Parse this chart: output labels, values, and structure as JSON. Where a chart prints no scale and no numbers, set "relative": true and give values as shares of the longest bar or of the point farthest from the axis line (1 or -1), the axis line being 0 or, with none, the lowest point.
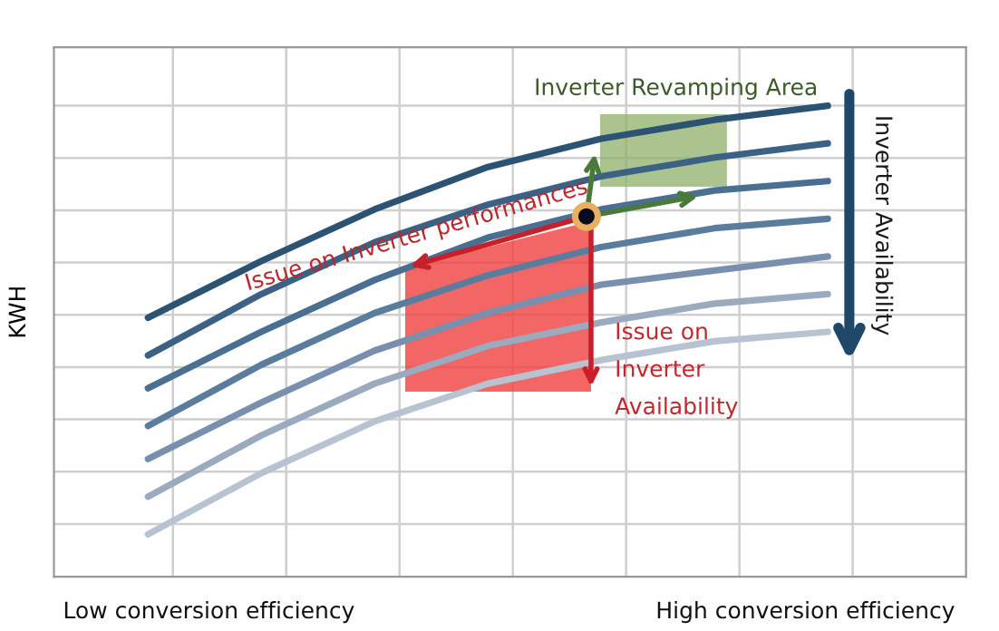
{
  "chart_data": {
    "type": "line",
    "relative": true,
    "ylabel": "KWH",
    "grid": true,
    "categories": [
      null,
      null,
      null,
      null,
      null,
      null,
      null
    ],
    "series": [
      {
        "color": "#2c5372",
        "values": [
          0.55,
          0.67,
          0.78,
          0.87,
          0.93,
          0.97,
          1.0
        ]
      },
      {
        "color": "#3b6285",
        "values": [
          0.47,
          0.6,
          0.71,
          0.79,
          0.85,
          0.89,
          0.92
        ]
      },
      {
        "color": "#4a6f92",
        "values": [
          0.4,
          0.52,
          0.63,
          0.72,
          0.78,
          0.82,
          0.84
        ]
      },
      {
        "color": "#5a7d9d",
        "values": [
          0.32,
          0.45,
          0.56,
          0.64,
          0.7,
          0.74,
          0.76
        ]
      },
      {
        "color": "#7890ad",
        "values": [
          0.25,
          0.37,
          0.48,
          0.56,
          0.62,
          0.65,
          0.68
        ]
      },
      {
        "color": "#9aabc0",
        "values": [
          0.17,
          0.3,
          0.41,
          0.49,
          0.54,
          0.58,
          0.6
        ]
      },
      {
        "color": "#b8c3d1",
        "values": [
          0.09,
          0.22,
          0.33,
          0.41,
          0.46,
          0.5,
          0.52
        ]
      }
    ],
    "annotations": [
      "Inverter Revamping Area",
      "Issue on Inverter performances",
      "Issue on\nInverter\nAvailability",
      "Inverter Availability",
      "Low conversion efficiency",
      "High conversion efficiency"
    ]
  }
}
